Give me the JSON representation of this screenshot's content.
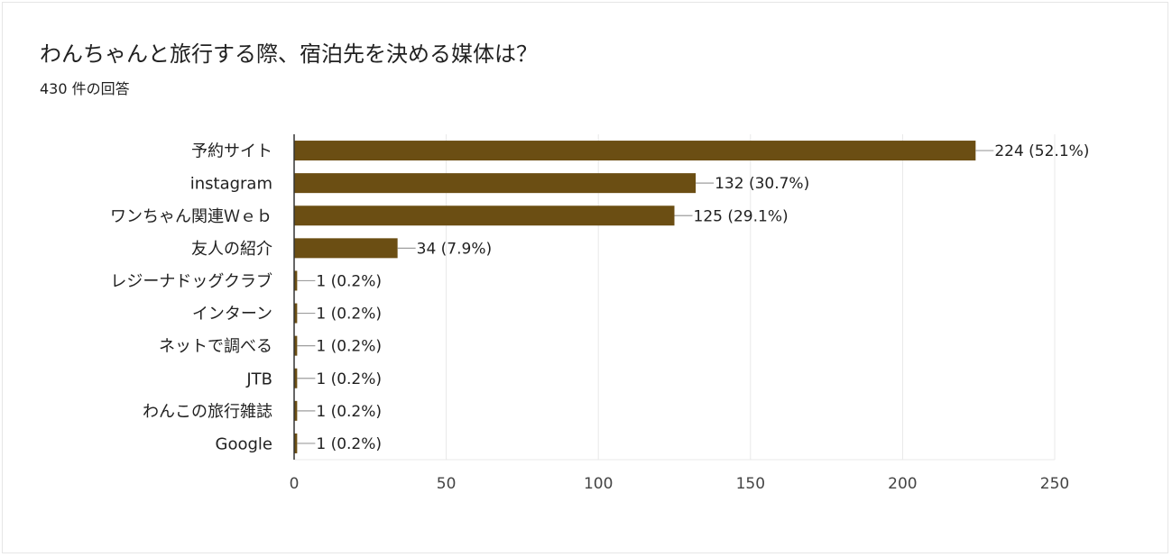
{
  "header": {
    "title": "わんちゃんと旅行する際、宿泊先を決める媒体は？",
    "subtitle": "430 件の回答"
  },
  "colors": {
    "bar": "#6B4E13",
    "grid": "#e8e8e8",
    "axis": "#333333",
    "connector": "#9e9e9e"
  },
  "chart_data": {
    "type": "bar",
    "orientation": "horizontal",
    "categories": [
      "予約サイト",
      "instagram",
      "ワンちゃん関連Ｗｅｂ",
      "友人の紹介",
      "レジーナドッグクラブ",
      "インターン",
      "ネットで調べる",
      "JTB",
      "わんこの旅行雑誌",
      "Google"
    ],
    "values": [
      224,
      132,
      125,
      34,
      1,
      1,
      1,
      1,
      1,
      1
    ],
    "data_labels": [
      "224 (52.1%)",
      "132 (30.7%)",
      "125 (29.1%)",
      "34 (7.9%)",
      "1 (0.2%)",
      "1 (0.2%)",
      "1 (0.2%)",
      "1 (0.2%)",
      "1 (0.2%)",
      "1 (0.2%)"
    ],
    "xlim": [
      0,
      250
    ],
    "xticks": [
      0,
      50,
      100,
      150,
      200,
      250
    ],
    "grid": true,
    "legend": "none"
  }
}
